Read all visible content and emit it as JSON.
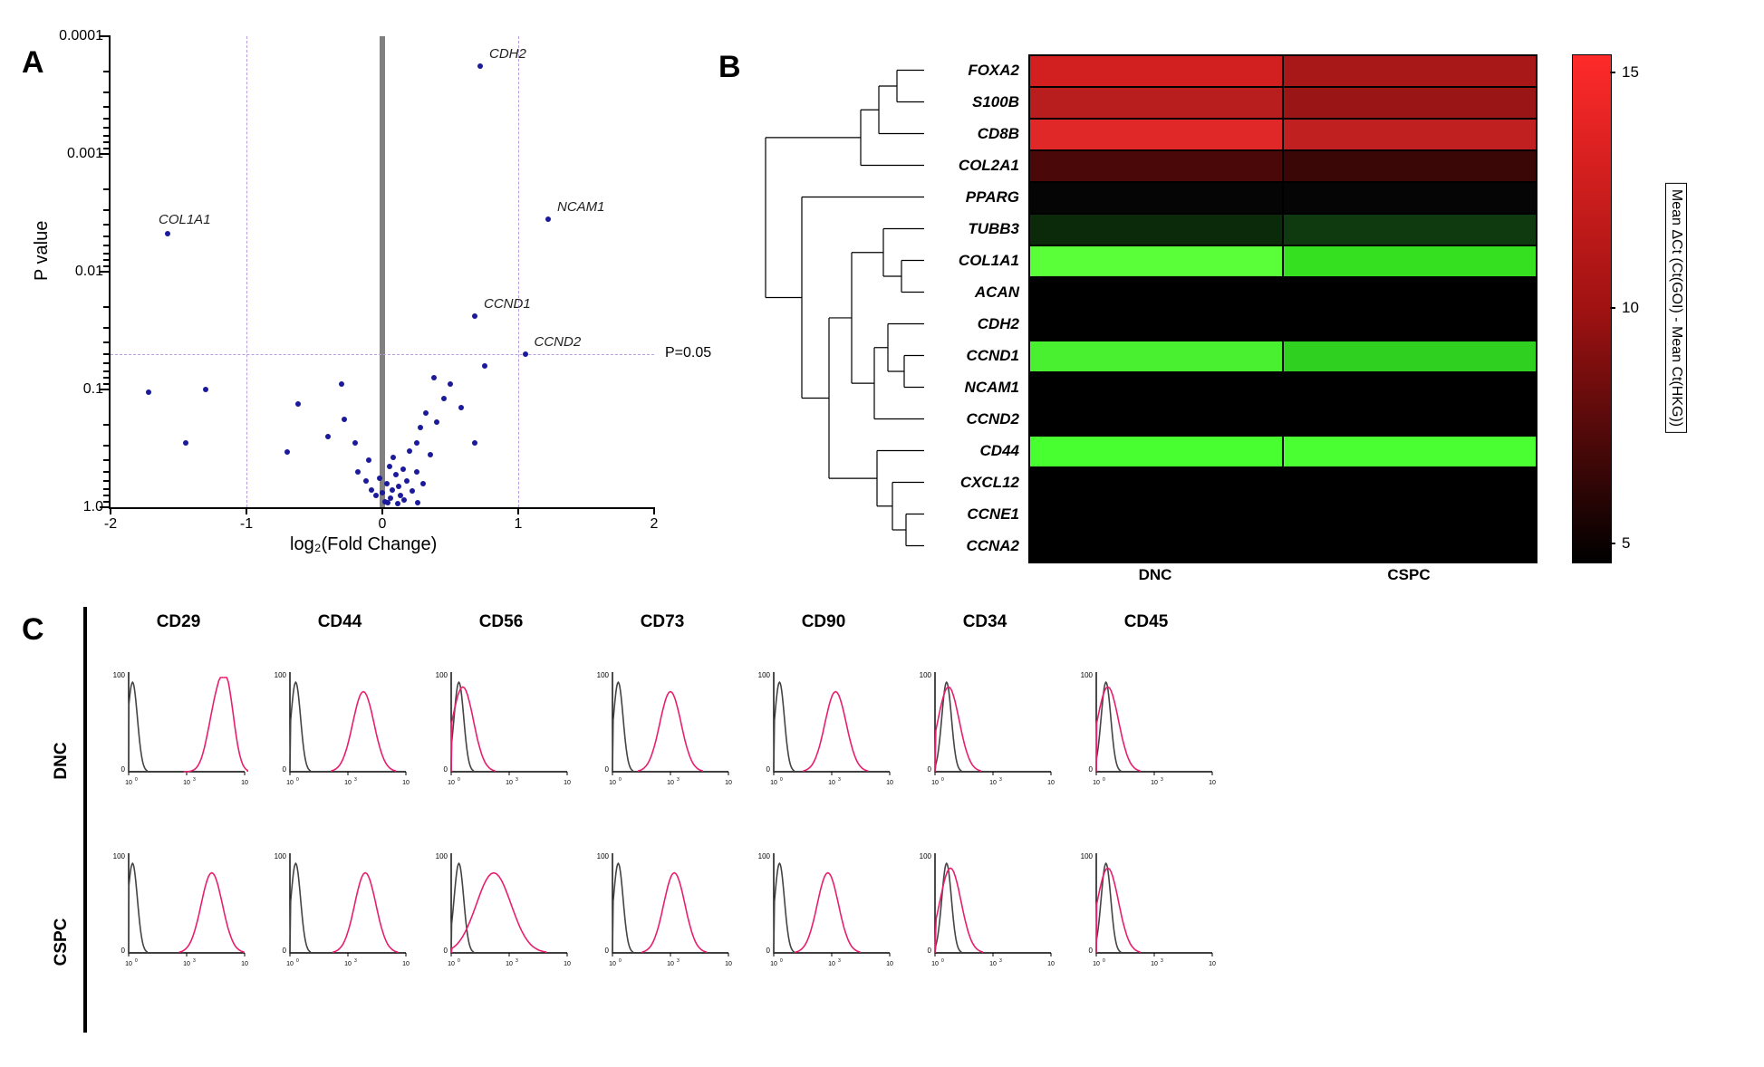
{
  "panels": {
    "A": "A",
    "B": "B",
    "C": "C"
  },
  "volcano": {
    "x_label": "log₂(Fold Change)",
    "y_label": "P value",
    "xlim": [
      -2,
      2
    ],
    "y_ticks": [
      "0.0001",
      "0.001",
      "0.01",
      "0.1",
      "1.0"
    ],
    "x_ticks": [
      -2,
      -1,
      0,
      1,
      2
    ],
    "p05_line_label": "P=0.05",
    "threshold_x": [
      -1,
      1
    ],
    "point_color": "#1a1a9a",
    "threshold_line_color": "#b8a0e0",
    "center_line_color": "#808080",
    "labeled_points": [
      {
        "name": "CDH2",
        "x": 0.72,
        "logp": 3.75
      },
      {
        "name": "NCAM1",
        "x": 1.22,
        "logp": 2.45
      },
      {
        "name": "CCND1",
        "x": 0.68,
        "logp": 1.62
      },
      {
        "name": "CCND2",
        "x": 1.05,
        "logp": 1.3
      },
      {
        "name": "COL1A1",
        "x": -1.58,
        "logp": 2.32
      }
    ],
    "unlabeled_points": [
      {
        "x": -1.72,
        "logp": 0.98
      },
      {
        "x": -1.45,
        "logp": 0.55
      },
      {
        "x": -1.3,
        "logp": 1.0
      },
      {
        "x": -0.7,
        "logp": 0.47
      },
      {
        "x": -0.62,
        "logp": 0.88
      },
      {
        "x": -0.4,
        "logp": 0.6
      },
      {
        "x": -0.3,
        "logp": 1.05
      },
      {
        "x": -0.28,
        "logp": 0.75
      },
      {
        "x": -0.2,
        "logp": 0.55
      },
      {
        "x": -0.18,
        "logp": 0.3
      },
      {
        "x": -0.12,
        "logp": 0.22
      },
      {
        "x": -0.1,
        "logp": 0.4
      },
      {
        "x": -0.08,
        "logp": 0.15
      },
      {
        "x": -0.05,
        "logp": 0.1
      },
      {
        "x": -0.02,
        "logp": 0.25
      },
      {
        "x": 0.0,
        "logp": 0.12
      },
      {
        "x": 0.02,
        "logp": 0.05
      },
      {
        "x": 0.03,
        "logp": 0.2
      },
      {
        "x": 0.05,
        "logp": 0.35
      },
      {
        "x": 0.06,
        "logp": 0.08
      },
      {
        "x": 0.07,
        "logp": 0.15
      },
      {
        "x": 0.08,
        "logp": 0.42
      },
      {
        "x": 0.1,
        "logp": 0.28
      },
      {
        "x": 0.12,
        "logp": 0.18
      },
      {
        "x": 0.13,
        "logp": 0.1
      },
      {
        "x": 0.15,
        "logp": 0.32
      },
      {
        "x": 0.16,
        "logp": 0.06
      },
      {
        "x": 0.18,
        "logp": 0.22
      },
      {
        "x": 0.2,
        "logp": 0.48
      },
      {
        "x": 0.22,
        "logp": 0.14
      },
      {
        "x": 0.25,
        "logp": 0.55
      },
      {
        "x": 0.25,
        "logp": 0.3
      },
      {
        "x": 0.28,
        "logp": 0.68
      },
      {
        "x": 0.3,
        "logp": 0.2
      },
      {
        "x": 0.32,
        "logp": 0.8
      },
      {
        "x": 0.35,
        "logp": 0.45
      },
      {
        "x": 0.38,
        "logp": 1.1
      },
      {
        "x": 0.4,
        "logp": 0.72
      },
      {
        "x": 0.45,
        "logp": 0.92
      },
      {
        "x": 0.5,
        "logp": 1.05
      },
      {
        "x": 0.58,
        "logp": 0.85
      },
      {
        "x": 0.68,
        "logp": 0.55
      },
      {
        "x": 0.75,
        "logp": 1.2
      },
      {
        "x": 0.26,
        "logp": 0.04
      },
      {
        "x": 0.11,
        "logp": 0.03
      },
      {
        "x": 0.04,
        "logp": 0.04
      }
    ]
  },
  "heatmap": {
    "genes": [
      "FOXA2",
      "S100B",
      "CD8B",
      "COL2A1",
      "PPARG",
      "TUBB3",
      "COL1A1",
      "ACAN",
      "CDH2",
      "CCND1",
      "NCAM1",
      "CCND2",
      "CD44",
      "CXCL12",
      "CCNE1",
      "CCNA2"
    ],
    "columns": [
      "DNC",
      "CSPC"
    ],
    "colorbar_label": "Mean ΔCt (Ct(GOI) - Mean Ct(HKG))",
    "colorbar_ticks": [
      15,
      10,
      5
    ],
    "cells": [
      [
        "#d22020",
        "#a81818"
      ],
      [
        "#b81e1e",
        "#9a1616"
      ],
      [
        "#e02828",
        "#c02020"
      ],
      [
        "#4a0808",
        "#3a0606"
      ],
      [
        "#050505",
        "#050505"
      ],
      [
        "#0a2a0a",
        "#0f3a0f"
      ],
      [
        "#5aff3a",
        "#34e020"
      ],
      [
        "#000000",
        "#000000"
      ],
      [
        "#000000",
        "#000000"
      ],
      [
        "#48f030",
        "#30d020"
      ],
      [
        "#000000",
        "#000000"
      ],
      [
        "#000000",
        "#000000"
      ],
      [
        "#48ff30",
        "#4aff32"
      ],
      [
        "#000000",
        "#000000"
      ],
      [
        "#000000",
        "#000000"
      ],
      [
        "#000000",
        "#000000"
      ]
    ],
    "colorbar_gradient": [
      "#ff2a2a",
      "#a01212",
      "#000000"
    ]
  },
  "flow": {
    "markers": [
      "CD29",
      "CD44",
      "CD56",
      "CD73",
      "CD90",
      "CD34",
      "CD45"
    ],
    "rows": [
      "DNC",
      "CSPC"
    ],
    "control_color": "#444444",
    "stain_color": "#e81e6e",
    "y_ticks": [
      0,
      100
    ],
    "x_ticks_log": [
      0,
      3,
      6
    ],
    "data": {
      "DNC": {
        "CD29": {
          "ctrl": 0.2,
          "stain": 4.5,
          "shape": "bimodal"
        },
        "CD44": {
          "ctrl": 0.3,
          "stain": 3.8
        },
        "CD56": {
          "ctrl": 0.4,
          "stain": 0.6,
          "overlap": true
        },
        "CD73": {
          "ctrl": 0.3,
          "stain": 3.0
        },
        "CD90": {
          "ctrl": 0.3,
          "stain": 3.2
        },
        "CD34": {
          "ctrl": 0.6,
          "stain": 0.7,
          "overlap": true
        },
        "CD45": {
          "ctrl": 0.5,
          "stain": 0.6,
          "overlap": true
        }
      },
      "CSPC": {
        "CD29": {
          "ctrl": 0.2,
          "stain": 4.3
        },
        "CD44": {
          "ctrl": 0.3,
          "stain": 3.9
        },
        "CD56": {
          "ctrl": 0.4,
          "stain": 2.2,
          "broad": true
        },
        "CD73": {
          "ctrl": 0.3,
          "stain": 3.2
        },
        "CD90": {
          "ctrl": 0.3,
          "stain": 2.8
        },
        "CD34": {
          "ctrl": 0.6,
          "stain": 0.8,
          "overlap": true
        },
        "CD45": {
          "ctrl": 0.5,
          "stain": 0.6,
          "overlap": true
        }
      }
    }
  }
}
